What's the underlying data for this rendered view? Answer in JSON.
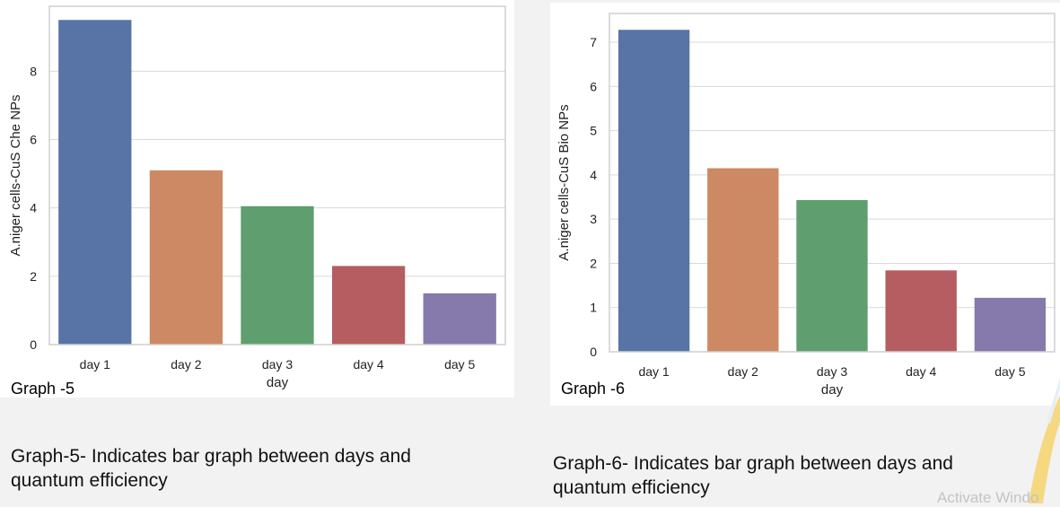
{
  "chart_data": [
    {
      "type": "bar",
      "categories": [
        "day 1",
        "day 2",
        "day 3",
        "day 4",
        "day 5"
      ],
      "values": [
        9.5,
        5.1,
        4.05,
        2.3,
        1.5
      ],
      "colors": [
        "#5874a6",
        "#cc8963",
        "#5f9e6e",
        "#b55d60",
        "#857aab"
      ],
      "xlabel": "day",
      "ylabel": "A.niger cells-CuS Che NPs",
      "ylim": [
        0,
        9.9
      ],
      "yticks": [
        0,
        2,
        4,
        6,
        8
      ],
      "grid": true,
      "tag": "Graph -5"
    },
    {
      "type": "bar",
      "categories": [
        "day 1",
        "day 2",
        "day 3",
        "day 4",
        "day 5"
      ],
      "values": [
        7.28,
        4.15,
        3.43,
        1.84,
        1.22
      ],
      "colors": [
        "#5874a6",
        "#cc8963",
        "#5f9e6e",
        "#b55d60",
        "#857aab"
      ],
      "xlabel": "day",
      "ylabel": "A.niger cells-CuS Bio NPs",
      "ylim": [
        0,
        7.65
      ],
      "yticks": [
        0,
        1,
        2,
        3,
        4,
        5,
        6,
        7
      ],
      "grid": true,
      "tag": "Graph -6"
    }
  ],
  "captions": {
    "left": [
      "Graph-5- Indicates bar graph between days and",
      "quantum efficiency"
    ],
    "right": [
      "Graph-6- Indicates bar graph between days and",
      "quantum efficiency"
    ]
  },
  "watermark": "Activate Windo"
}
